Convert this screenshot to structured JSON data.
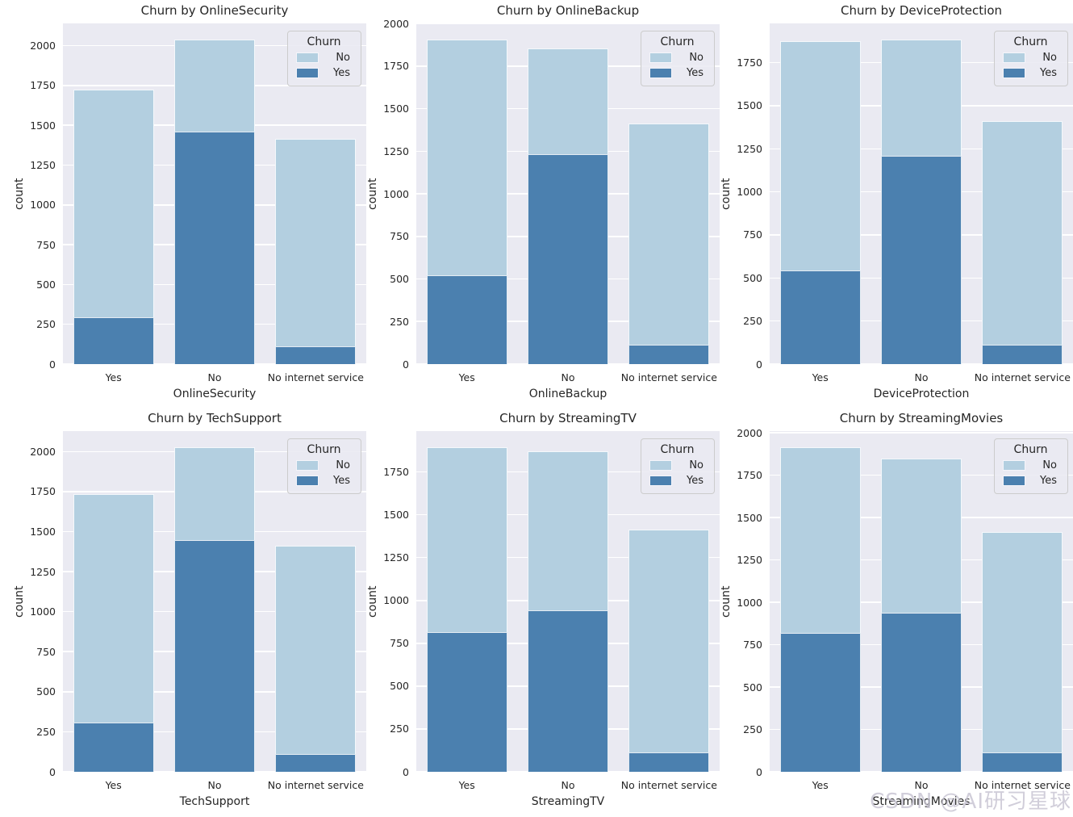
{
  "figure": {
    "watermark": "CSDN @AI研习星球",
    "ylabel": "count"
  },
  "colors": {
    "churn_no": "#b3cfe0",
    "churn_yes": "#4b80af",
    "axes_background": "#eaeaf2",
    "gridline": "#ffffff",
    "text": "#262626",
    "legend_background": "#f2f2f8",
    "legend_border": "#cccccc",
    "watermark": "#c6c3d1"
  },
  "chart_data": [
    {
      "type": "bar",
      "bar_mode": "overlay",
      "grid": true,
      "legend_position": "upper right",
      "title": "Churn by OnlineSecurity",
      "xlabel": "OnlineSecurity",
      "ylabel": "count",
      "legend_title": "Churn",
      "categories": [
        "Yes",
        "No",
        "No internet service"
      ],
      "series": [
        {
          "name": "No",
          "values": [
            1724,
            2037,
            1413
          ]
        },
        {
          "name": "Yes",
          "values": [
            295,
            1461,
            113
          ]
        }
      ],
      "ylim": [
        0,
        2139
      ],
      "yticks": [
        0,
        250,
        500,
        750,
        1000,
        1250,
        1500,
        1750,
        2000
      ]
    },
    {
      "type": "bar",
      "bar_mode": "overlay",
      "grid": true,
      "legend_position": "upper right",
      "title": "Churn by OnlineBackup",
      "xlabel": "OnlineBackup",
      "ylabel": "count",
      "legend_title": "Churn",
      "categories": [
        "Yes",
        "No",
        "No internet service"
      ],
      "series": [
        {
          "name": "No",
          "values": [
            1906,
            1855,
            1413
          ]
        },
        {
          "name": "Yes",
          "values": [
            523,
            1233,
            113
          ]
        }
      ],
      "ylim": [
        0,
        2001
      ],
      "yticks": [
        0,
        250,
        500,
        750,
        1000,
        1250,
        1500,
        1750,
        2000
      ]
    },
    {
      "type": "bar",
      "bar_mode": "overlay",
      "grid": true,
      "legend_position": "upper right",
      "title": "Churn by DeviceProtection",
      "xlabel": "DeviceProtection",
      "ylabel": "count",
      "legend_title": "Churn",
      "categories": [
        "Yes",
        "No",
        "No internet service"
      ],
      "series": [
        {
          "name": "No",
          "values": [
            1877,
            1884,
            1413
          ]
        },
        {
          "name": "Yes",
          "values": [
            545,
            1211,
            113
          ]
        }
      ],
      "ylim": [
        0,
        1978
      ],
      "yticks": [
        0,
        250,
        500,
        750,
        1000,
        1250,
        1500,
        1750
      ]
    },
    {
      "type": "bar",
      "bar_mode": "overlay",
      "grid": true,
      "legend_position": "upper right",
      "title": "Churn by TechSupport",
      "xlabel": "TechSupport",
      "ylabel": "count",
      "legend_title": "Churn",
      "categories": [
        "Yes",
        "No",
        "No internet service"
      ],
      "series": [
        {
          "name": "No",
          "values": [
            1734,
            2027,
            1413
          ]
        },
        {
          "name": "Yes",
          "values": [
            310,
            1446,
            113
          ]
        }
      ],
      "ylim": [
        0,
        2128
      ],
      "yticks": [
        0,
        250,
        500,
        750,
        1000,
        1250,
        1500,
        1750,
        2000
      ]
    },
    {
      "type": "bar",
      "bar_mode": "overlay",
      "grid": true,
      "legend_position": "upper right",
      "title": "Churn by StreamingTV",
      "xlabel": "StreamingTV",
      "ylabel": "count",
      "legend_title": "Churn",
      "categories": [
        "Yes",
        "No",
        "No internet service"
      ],
      "series": [
        {
          "name": "No",
          "values": [
            1893,
            1868,
            1413
          ]
        },
        {
          "name": "Yes",
          "values": [
            814,
            942,
            113
          ]
        }
      ],
      "ylim": [
        0,
        1988
      ],
      "yticks": [
        0,
        250,
        500,
        750,
        1000,
        1250,
        1500,
        1750
      ]
    },
    {
      "type": "bar",
      "bar_mode": "overlay",
      "grid": true,
      "legend_position": "upper right",
      "title": "Churn by StreamingMovies",
      "xlabel": "StreamingMovies",
      "ylabel": "count",
      "legend_title": "Churn",
      "categories": [
        "Yes",
        "No",
        "No internet service"
      ],
      "series": [
        {
          "name": "No",
          "values": [
            1914,
            1847,
            1413
          ]
        },
        {
          "name": "Yes",
          "values": [
            818,
            938,
            113
          ]
        }
      ],
      "ylim": [
        0,
        2010
      ],
      "yticks": [
        0,
        250,
        500,
        750,
        1000,
        1250,
        1500,
        1750,
        2000
      ]
    }
  ]
}
